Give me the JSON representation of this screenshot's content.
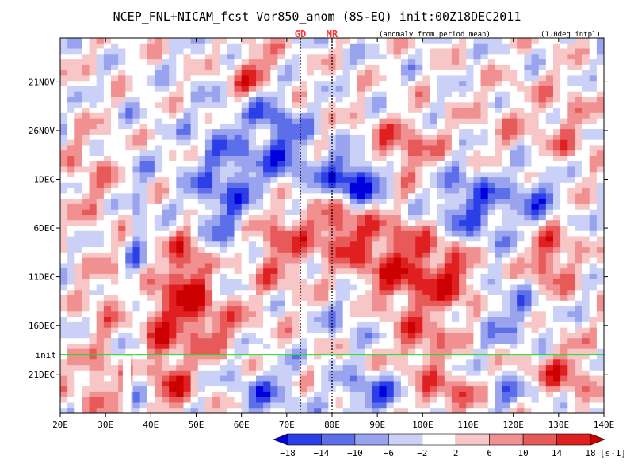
{
  "chart_data": {
    "type": "heatmap",
    "title": "NCEP_FNL+NICAM_fcst Vor850_anom (8S-EQ) init:00Z18DEC2011",
    "subtitle_left": "(anomaly from period mean)",
    "subtitle_right": "(1.0deg intpl)",
    "x_ticks": [
      "20E",
      "30E",
      "40E",
      "50E",
      "60E",
      "70E",
      "80E",
      "90E",
      "100E",
      "110E",
      "120E",
      "130E",
      "140E"
    ],
    "x_values": [
      20,
      30,
      40,
      50,
      60,
      70,
      80,
      90,
      100,
      110,
      120,
      130,
      140
    ],
    "xlim": [
      20,
      140
    ],
    "y_ticks": [
      "21NOV",
      "26NOV",
      "1DEC",
      "6DEC",
      "11DEC",
      "16DEC",
      "21DEC"
    ],
    "y_values": [
      5,
      10,
      15,
      20,
      25,
      30,
      35
    ],
    "ylim_days": [
      0.5,
      39
    ],
    "init_label": "init",
    "init_day": 33,
    "init_color": "#22dd22",
    "markers": [
      {
        "label": "GD",
        "lon": 73,
        "color": "#ff3333"
      },
      {
        "label": "MR",
        "lon": 80,
        "color": "#ff3333"
      }
    ],
    "colorbar": {
      "ticks": [
        "-18",
        "-14",
        "-10",
        "-6",
        "-2",
        "2",
        "6",
        "10",
        "14",
        "18"
      ],
      "unit": "[s-1]",
      "colors": [
        "#0000dd",
        "#2b3ee8",
        "#5c6fe8",
        "#9aa4ee",
        "#cbd0f6",
        "#ffffff",
        "#f7c6c6",
        "#f09090",
        "#e85a5a",
        "#e02020",
        "#cc0000"
      ]
    }
  }
}
